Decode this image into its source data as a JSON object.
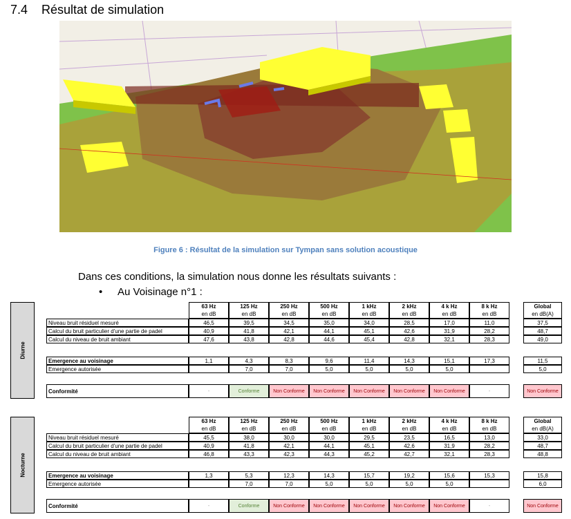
{
  "section": {
    "number": "7.4",
    "title": "Résultat de simulation"
  },
  "figure": {
    "caption": "Figure 6 : Résultat de la simulation sur Tympan sans solution acoustique"
  },
  "intro": "Dans ces conditions, la simulation nous donne les résultats suivants :",
  "bullet": "Au Voisinage n°1 :",
  "tables": [
    {
      "period": "Diurne",
      "columns": [
        "63 Hz",
        "125 Hz",
        "250 Hz",
        "500 Hz",
        "1 kHz",
        "2 kHz",
        "4 k Hz",
        "8 k Hz",
        "Global"
      ],
      "units": [
        "en dB",
        "en dB",
        "en dB",
        "en dB",
        "en dB",
        "en dB",
        "en dB",
        "en dB",
        "en dB(A)"
      ],
      "rows": [
        {
          "label": "Niveau bruit résiduel mesuré",
          "values": [
            "46,5",
            "39,5",
            "34,5",
            "35,0",
            "34,0",
            "28,5",
            "17,0",
            "11,0",
            "37,5"
          ]
        },
        {
          "label": "Calcul du bruit particulier d'une partie de padel",
          "values": [
            "40,9",
            "41,8",
            "42,1",
            "44,1",
            "45,1",
            "42,6",
            "31,9",
            "28,2",
            "48,7"
          ]
        },
        {
          "label": "Calcul du niveau de bruit ambiant",
          "values": [
            "47,6",
            "43,8",
            "42,8",
            "44,6",
            "45,4",
            "42,8",
            "32,1",
            "28,3",
            "49,0"
          ]
        }
      ],
      "emergence": {
        "label": "Emergence au voisinage",
        "values": [
          "1,1",
          "4,3",
          "8,3",
          "9,6",
          "11,4",
          "14,3",
          "15,1",
          "17,3",
          "11,5"
        ]
      },
      "autorisee": {
        "label": "Emergence autorisée",
        "values": [
          null,
          "7,0",
          "7,0",
          "5,0",
          "5,0",
          "5,0",
          "5,0",
          null,
          "5,0"
        ]
      },
      "conformite": {
        "label": "Conformité",
        "values": [
          "-",
          "Conforme",
          "Non Conforme",
          "Non Conforme",
          "Non Conforme",
          "Non Conforme",
          "Non Conforme",
          "-",
          "Non Conforme"
        ],
        "fills": [
          "#ffffff",
          "#e2efda",
          "#ffc7ce",
          "#ffc7ce",
          "#ffc7ce",
          "#ffc7ce",
          "#ffc7ce",
          "#ffffff",
          "#ffc7ce"
        ],
        "colors": [
          "#999999",
          "#548235",
          "#9c0006",
          "#9c0006",
          "#9c0006",
          "#9c0006",
          "#9c0006",
          "#999999",
          "#9c0006"
        ]
      }
    },
    {
      "period": "Nocturne",
      "columns": [
        "63 Hz",
        "125 Hz",
        "250 Hz",
        "500 Hz",
        "1 kHz",
        "2 kHz",
        "4 k Hz",
        "8 k Hz",
        "Global"
      ],
      "units": [
        "en dB",
        "en dB",
        "en dB",
        "en dB",
        "en dB",
        "en dB",
        "en dB",
        "en dB",
        "en dB(A)"
      ],
      "rows": [
        {
          "label": "Niveau bruit résiduel mesuré",
          "values": [
            "45,5",
            "38,0",
            "30,0",
            "30,0",
            "29,5",
            "23,5",
            "16,5",
            "13,0",
            "33,0"
          ]
        },
        {
          "label": "Calcul du bruit particulier d'une partie de padel",
          "values": [
            "40,9",
            "41,8",
            "42,1",
            "44,1",
            "45,1",
            "42,6",
            "31,9",
            "28,2",
            "48,7"
          ]
        },
        {
          "label": "Calcul du niveau de bruit ambiant",
          "values": [
            "46,8",
            "43,3",
            "42,3",
            "44,3",
            "45,2",
            "42,7",
            "32,1",
            "28,3",
            "48,8"
          ]
        }
      ],
      "emergence": {
        "label": "Emergence au voisinage",
        "values": [
          "1,3",
          "5,3",
          "12,3",
          "14,3",
          "15,7",
          "19,2",
          "15,6",
          "15,3",
          "15,8"
        ]
      },
      "autorisee": {
        "label": "Emergence autorisée",
        "values": [
          null,
          "7,0",
          "7,0",
          "5,0",
          "5,0",
          "5,0",
          "5,0",
          null,
          "6,0"
        ]
      },
      "conformite": {
        "label": "Conformité",
        "values": [
          "-",
          "Conforme",
          "Non Conforme",
          "Non Conforme",
          "Non Conforme",
          "Non Conforme",
          "Non Conforme",
          "-",
          "Non Conforme"
        ],
        "fills": [
          "#ffffff",
          "#e2efda",
          "#ffc7ce",
          "#ffc7ce",
          "#ffc7ce",
          "#ffc7ce",
          "#ffc7ce",
          "#ffffff",
          "#ffc7ce"
        ],
        "colors": [
          "#999999",
          "#548235",
          "#9c0006",
          "#9c0006",
          "#9c0006",
          "#9c0006",
          "#9c0006",
          "#999999",
          "#9c0006"
        ]
      }
    }
  ]
}
